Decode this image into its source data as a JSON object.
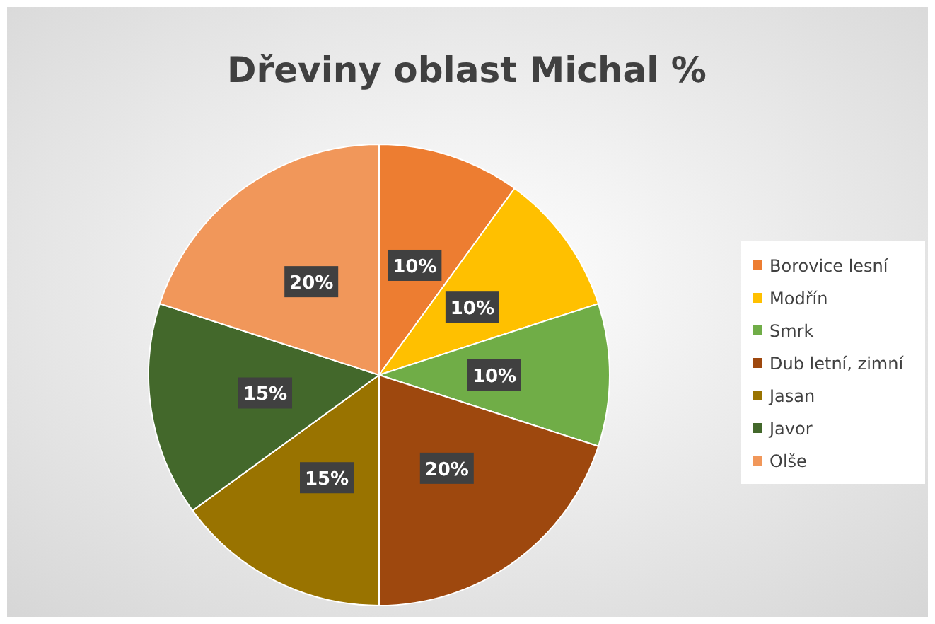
{
  "chart_data": {
    "type": "pie",
    "title": "Dřeviny oblast Michal %",
    "categories": [
      "Borovice lesní",
      "Modřín",
      "Smrk",
      "Dub letní, zimní",
      "Jasan",
      "Javor",
      "Olše"
    ],
    "values": [
      10,
      10,
      10,
      20,
      15,
      15,
      20
    ],
    "colors": [
      "#ed7d31",
      "#ffc000",
      "#70ad47",
      "#9e480e",
      "#997300",
      "#43682b",
      "#f1975a"
    ],
    "value_labels": [
      "10%",
      "10%",
      "10%",
      "20%",
      "15%",
      "15%",
      "20%"
    ],
    "legend": "right"
  }
}
